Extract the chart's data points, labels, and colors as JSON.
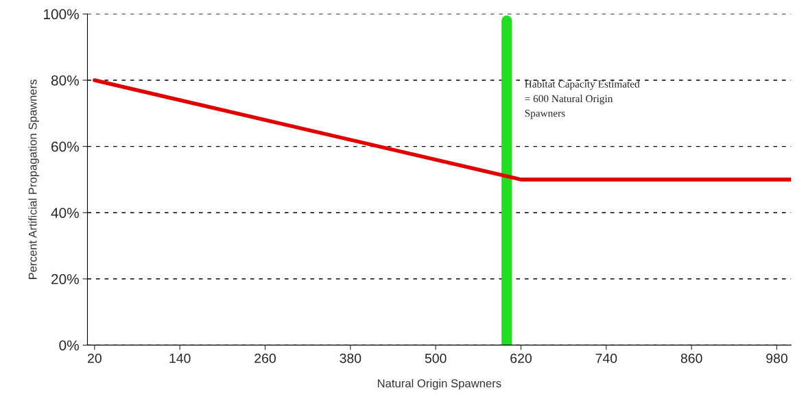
{
  "chart_data": {
    "type": "line",
    "xlabel": "Natural Origin Spawners",
    "ylabel": "Percent Artificial Propagation Spawners",
    "x": [
      20,
      620,
      1000
    ],
    "series": [
      {
        "color": "#e00000",
        "values": [
          80,
          50,
          50
        ]
      }
    ],
    "xlim": [
      10,
      1000
    ],
    "xticks": [
      20,
      140,
      260,
      380,
      500,
      620,
      740,
      860,
      980
    ],
    "ylim": [
      0,
      100
    ],
    "yticks": [
      {
        "value": 0,
        "label": "0%"
      },
      {
        "value": 20,
        "label": "20%"
      },
      {
        "value": 40,
        "label": "40%"
      },
      {
        "value": 60,
        "label": "60%"
      },
      {
        "value": 80,
        "label": "80%"
      },
      {
        "value": 100,
        "label": "100%"
      }
    ],
    "grid": "y",
    "ref_lines": [
      {
        "axis": "x",
        "value": 600,
        "label": "Habitat Capacity Estimated\n= 600 Natural Origin\nSpawners",
        "color": "#22dd22"
      }
    ]
  }
}
